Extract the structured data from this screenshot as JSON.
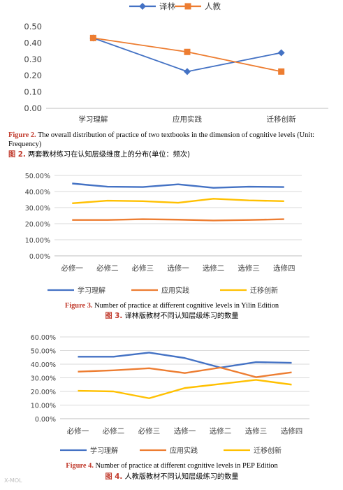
{
  "colors": {
    "blue": "#4472c4",
    "orange": "#ed7d31",
    "gray": "#a5a5a5",
    "yellow": "#ffc000",
    "caption_label": "#c0392b"
  },
  "captions": {
    "fig2_label": "Figure 2.",
    "fig2_en": "The overall distribution of practice of two textbooks in the dimension of cognitive levels (Unit: Frequency)",
    "fig2_zh_label": "图 2.",
    "fig2_zh": "两套教材练习在认知层级维度上的分布(单位：频次)",
    "fig3_label": "Figure 3.",
    "fig3_en": "Number of practice at different cognitive levels in Yilin Edition",
    "fig3_zh_label": "图 3.",
    "fig3_zh": "译林版教材不同认知层级练习的数量",
    "fig4_label": "Figure 4.",
    "fig4_en": "Number of practice at different cognitive levels in PEP Edition",
    "fig4_zh_label": "图 4.",
    "fig4_zh": "人教版教材不同认知层级练习的数量"
  },
  "watermark": "X-MOL",
  "chart_data": [
    {
      "type": "line",
      "categories": [
        "学习理解",
        "应用实践",
        "迁移创新"
      ],
      "series": [
        {
          "name": "译林",
          "color": "#4472c4",
          "marker": "diamond",
          "values": [
            0.43,
            0.225,
            0.34
          ]
        },
        {
          "name": "人教",
          "color": "#ed7d31",
          "marker": "square",
          "values": [
            0.43,
            0.345,
            0.225
          ]
        }
      ],
      "ylim": [
        0,
        0.5
      ],
      "yticks": [
        "0.00",
        "0.10",
        "0.20",
        "0.30",
        "0.40",
        "0.50"
      ],
      "ytick_values": [
        0,
        0.1,
        0.2,
        0.3,
        0.4,
        0.5
      ],
      "grid": false,
      "legend": "top"
    },
    {
      "type": "line",
      "categories": [
        "必修一",
        "必修二",
        "必修三",
        "选修一",
        "选修二",
        "选修三",
        "选修四"
      ],
      "series": [
        {
          "name": "学习理解",
          "color": "#4472c4",
          "values": [
            0.45,
            0.43,
            0.428,
            0.445,
            0.423,
            0.43,
            0.428
          ]
        },
        {
          "name": "应用实践",
          "color": "#ed7d31",
          "values": [
            0.223,
            0.223,
            0.228,
            0.225,
            0.22,
            0.223,
            0.228
          ]
        },
        {
          "name": "迁移创新",
          "color": "#ffc000",
          "values": [
            0.327,
            0.343,
            0.34,
            0.33,
            0.355,
            0.345,
            0.34
          ]
        }
      ],
      "ylim": [
        0,
        0.5
      ],
      "yticks": [
        "0.00%",
        "10.00%",
        "20.00%",
        "30.00%",
        "40.00%",
        "50.00%"
      ],
      "ytick_values": [
        0,
        0.1,
        0.2,
        0.3,
        0.4,
        0.5
      ],
      "grid": true,
      "legend": "bottom"
    },
    {
      "type": "line",
      "categories": [
        "必修一",
        "必修二",
        "必修三",
        "选修一",
        "选修二",
        "选修三",
        "选修四"
      ],
      "series": [
        {
          "name": "学习理解",
          "color": "#4472c4",
          "values": [
            0.455,
            0.455,
            0.485,
            0.445,
            0.375,
            0.415,
            0.41
          ]
        },
        {
          "name": "应用实践",
          "color": "#ed7d31",
          "values": [
            0.345,
            0.355,
            0.37,
            0.335,
            0.375,
            0.305,
            0.34
          ]
        },
        {
          "name": "迁移创新",
          "color": "#ffc000",
          "values": [
            0.205,
            0.2,
            0.15,
            0.225,
            0.255,
            0.285,
            0.25
          ]
        }
      ],
      "ylim": [
        0,
        0.6
      ],
      "yticks": [
        "0.00%",
        "10.00%",
        "20.00%",
        "30.00%",
        "40.00%",
        "50.00%",
        "60.00%"
      ],
      "ytick_values": [
        0,
        0.1,
        0.2,
        0.3,
        0.4,
        0.5,
        0.6
      ],
      "grid": true,
      "legend": "bottom"
    }
  ]
}
